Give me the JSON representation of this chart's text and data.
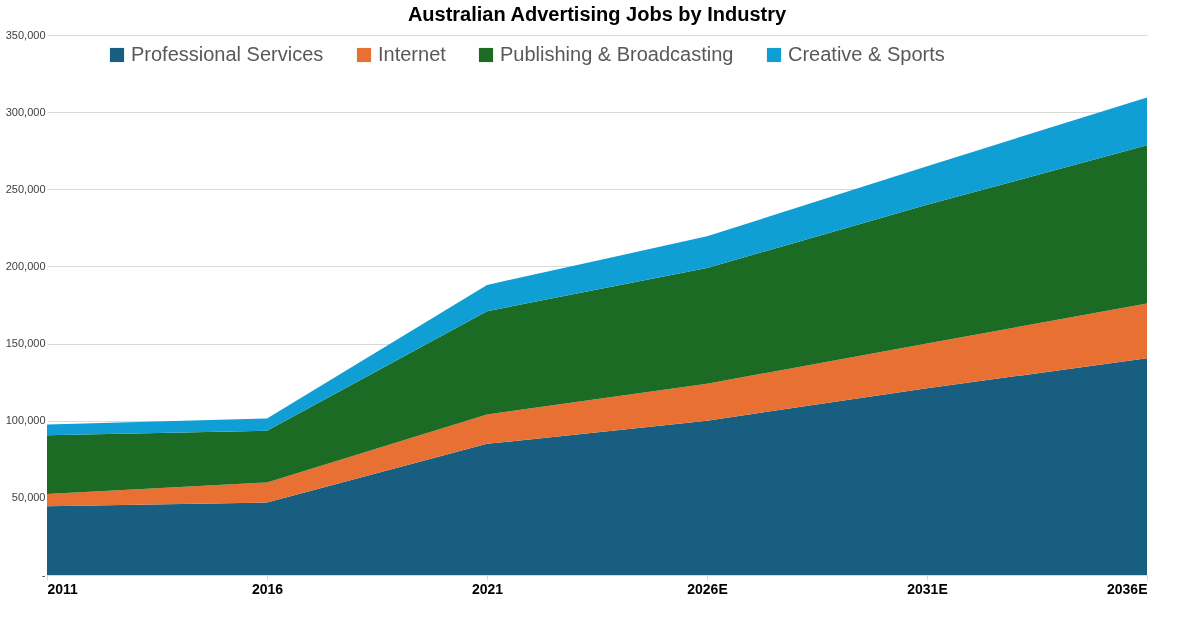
{
  "chart_data": {
    "type": "area",
    "title": "Australian Advertising Jobs by Industry",
    "stacked": true,
    "categories": [
      "2011",
      "2016",
      "2021",
      "2026E",
      "2031E",
      "2036E"
    ],
    "series": [
      {
        "name": "Professional Services",
        "color": "#175e80",
        "values": [
          44500,
          47000,
          85000,
          100000,
          121000,
          140500
        ]
      },
      {
        "name": "Internet",
        "color": "#e87033",
        "values": [
          8000,
          13000,
          19000,
          24000,
          29000,
          35500
        ]
      },
      {
        "name": "Publishing & Broadcasting",
        "color": "#1b6b25",
        "values": [
          38000,
          33500,
          67000,
          75000,
          90000,
          102500
        ]
      },
      {
        "name": "Creative & Sports",
        "color": "#109fd4",
        "values": [
          7000,
          8000,
          17000,
          20500,
          25000,
          31000
        ]
      }
    ],
    "ylim": [
      0,
      350000
    ],
    "yticks": [
      {
        "value": 0,
        "label": "-"
      },
      {
        "value": 50000,
        "label": "50,000"
      },
      {
        "value": 100000,
        "label": "100,000"
      },
      {
        "value": 150000,
        "label": "150,000"
      },
      {
        "value": 200000,
        "label": "200,000"
      },
      {
        "value": 250000,
        "label": "250,000"
      },
      {
        "value": 300000,
        "label": "300,000"
      },
      {
        "value": 350000,
        "label": "350,000"
      }
    ],
    "grid": "y",
    "legend": "top"
  }
}
